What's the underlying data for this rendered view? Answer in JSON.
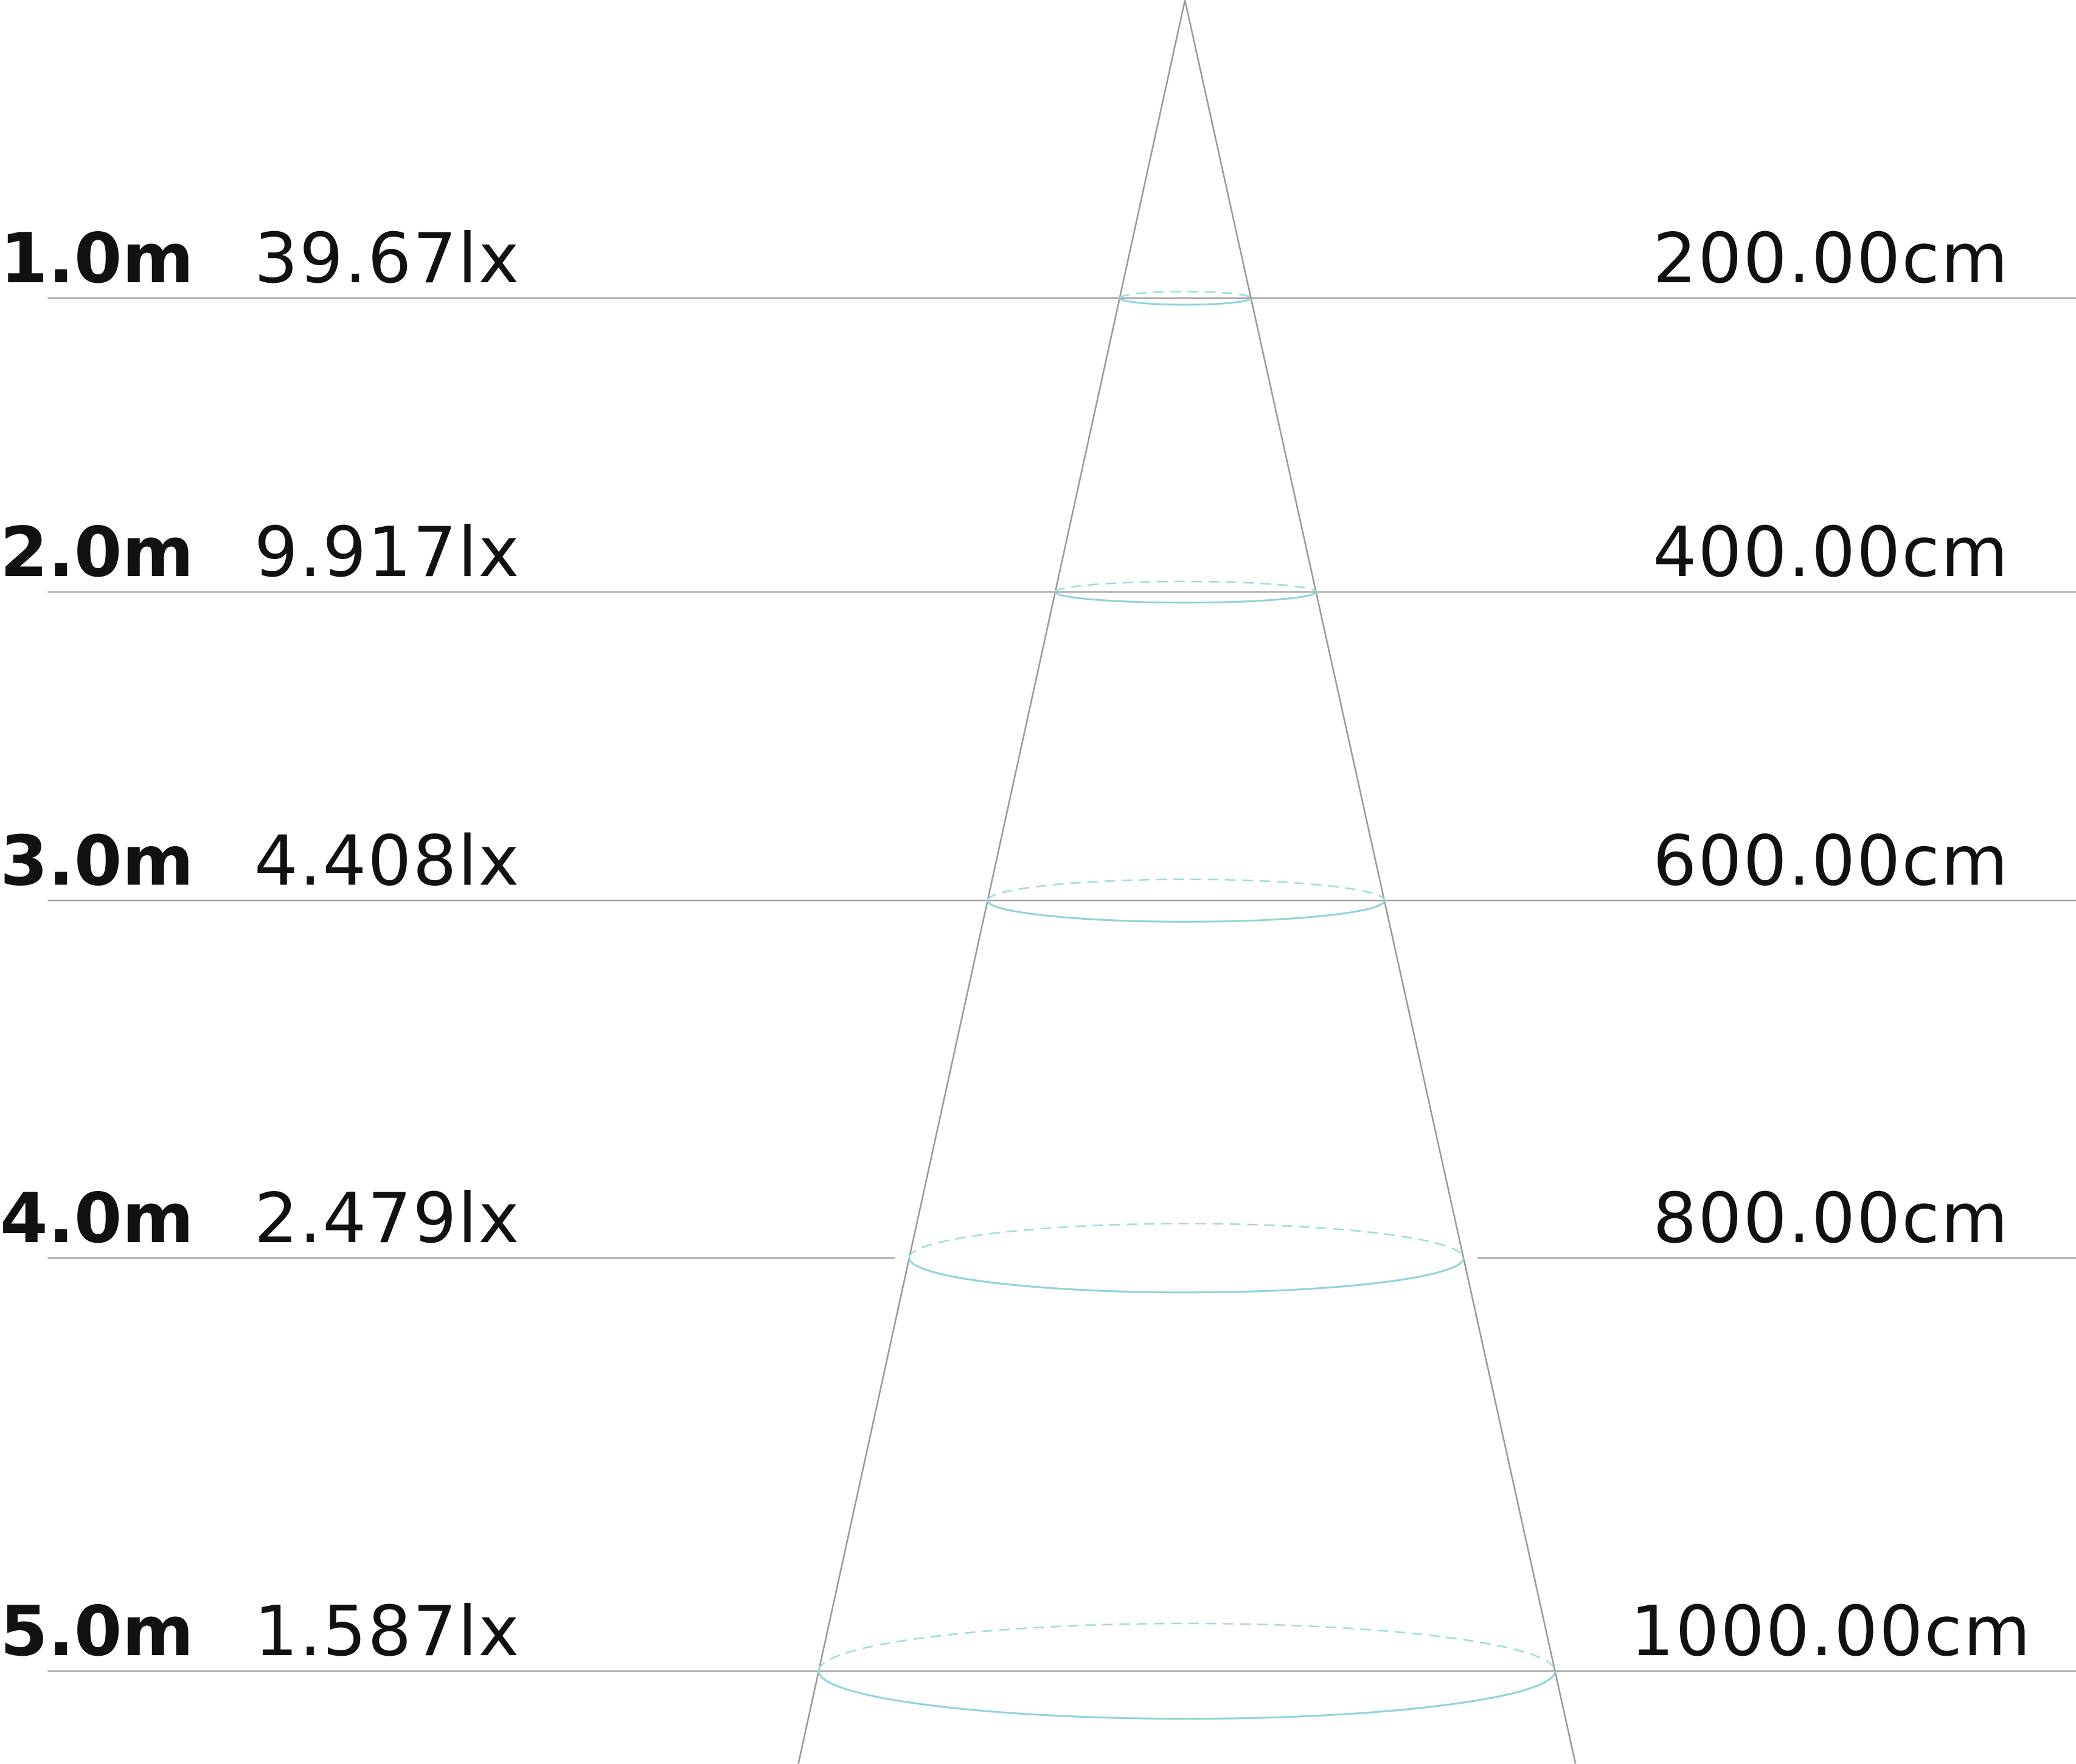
{
  "rows": [
    {
      "distance": "1.0m",
      "illuminance": "39.67lx",
      "diameter": "200.00cm"
    },
    {
      "distance": "2.0m",
      "illuminance": "9.917lx",
      "diameter": "400.00cm"
    },
    {
      "distance": "3.0m",
      "illuminance": "4.408lx",
      "diameter": "600.00cm"
    },
    {
      "distance": "4.0m",
      "illuminance": "2.479lx",
      "diameter": "800.00cm"
    },
    {
      "distance": "5.0m",
      "illuminance": "1.587lx",
      "diameter": "1000.00cm"
    }
  ]
}
